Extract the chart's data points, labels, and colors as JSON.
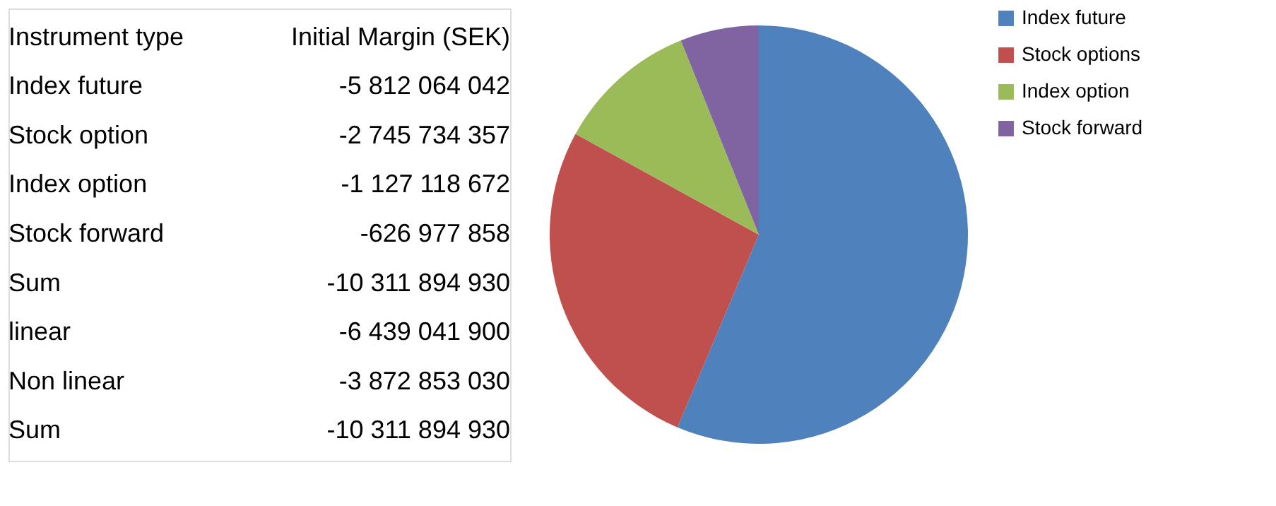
{
  "chart_data": [
    {
      "type": "other",
      "annotations": [
        "Instrument type",
        "Initial Margin (SEK)",
        "Index future",
        "-5 812 064 042",
        "Stock option",
        "-2 745 734 357",
        "Index option",
        "-1 127 118 672",
        "Stock forward",
        "-626 977 858",
        "Sum",
        "-10 311 894 930",
        "linear",
        "-6 439 041 900",
        "Non linear",
        "-3 872 853 030",
        "Sum",
        "-10 311 894 930"
      ]
    },
    {
      "type": "pie",
      "categories": [
        "Index future",
        "Stock options",
        "Index option",
        "Stock forward"
      ],
      "values": [
        56.36,
        26.63,
        10.93,
        6.08
      ],
      "colors": [
        "#4f81bd",
        "#c0504d",
        "#9bbb59",
        "#8064a2"
      ],
      "legend": "right"
    }
  ]
}
